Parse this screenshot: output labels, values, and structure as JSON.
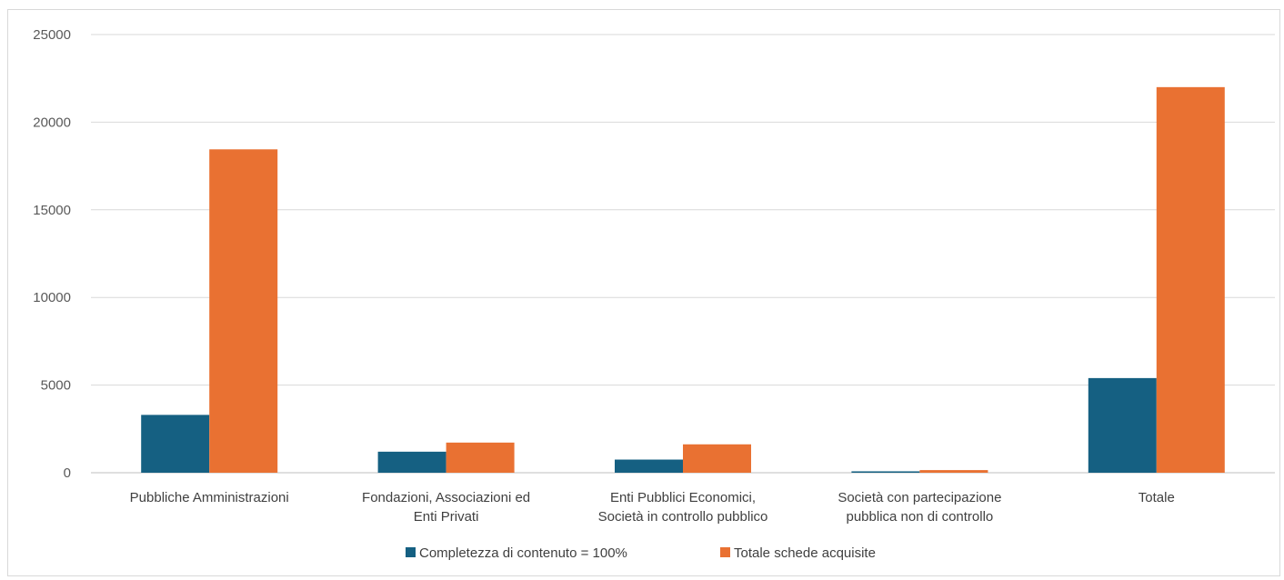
{
  "chart_data": {
    "type": "bar",
    "title": "",
    "xlabel": "",
    "ylabel": "",
    "ylim": [
      0,
      25000
    ],
    "yticks": [
      0,
      5000,
      10000,
      15000,
      20000,
      25000
    ],
    "grid": true,
    "legend_position": "bottom",
    "categories": [
      [
        "Pubbliche Amministrazioni"
      ],
      [
        "Fondazioni, Associazioni ed",
        "Enti Privati"
      ],
      [
        "Enti Pubblici Economici,",
        "Società in controllo pubblico"
      ],
      [
        "Società con partecipazione",
        "pubblica non di controllo"
      ],
      [
        "Totale"
      ]
    ],
    "series": [
      {
        "name": "Completezza di contenuto = 100%",
        "color": "#156082",
        "values": [
          3300,
          1200,
          750,
          80,
          5400
        ]
      },
      {
        "name": "Totale schede acquisite",
        "color": "#E97132",
        "values": [
          18450,
          1720,
          1620,
          150,
          22000
        ]
      }
    ]
  }
}
